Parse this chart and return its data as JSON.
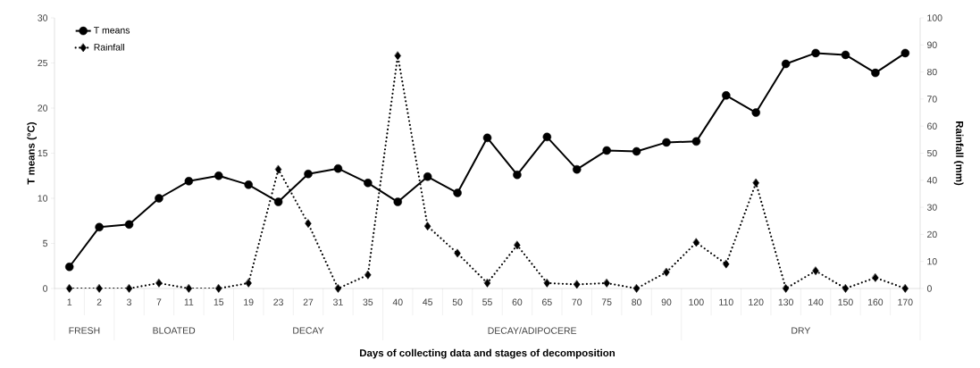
{
  "chart_data": {
    "type": "line",
    "xlabel": "Days of collecting data and stages of decomposition",
    "ylabel": "T means (°C)",
    "y2label": "Rainfall (mm)",
    "categories": [
      "1",
      "2",
      "3",
      "7",
      "11",
      "15",
      "19",
      "23",
      "27",
      "31",
      "35",
      "40",
      "45",
      "50",
      "55",
      "60",
      "65",
      "70",
      "75",
      "80",
      "90",
      "100",
      "110",
      "120",
      "130",
      "140",
      "150",
      "160",
      "170"
    ],
    "series": [
      {
        "name": "T means",
        "color": "#000000",
        "marker": "circle",
        "line_style": "solid",
        "values": [
          2.4,
          6.8,
          7.1,
          10.0,
          11.9,
          12.5,
          11.5,
          9.6,
          12.7,
          13.3,
          11.7,
          9.6,
          12.4,
          10.6,
          16.7,
          12.6,
          16.8,
          13.2,
          15.3,
          15.2,
          16.2,
          16.3,
          21.4,
          19.5,
          24.9,
          26.1,
          25.9,
          23.9,
          26.1
        ]
      },
      {
        "name": "Rainfall",
        "color": "#000000",
        "marker": "diamond",
        "line_style": "dotted",
        "axis": "y2",
        "values": [
          0,
          0,
          0,
          2,
          0,
          0,
          2,
          44,
          24,
          0,
          5,
          86,
          23,
          13,
          2,
          16,
          2,
          1.5,
          2,
          0,
          6,
          17,
          9,
          39,
          0,
          6.5,
          0,
          4,
          0
        ]
      }
    ],
    "ylim": [
      0,
      30
    ],
    "yticks": [
      0,
      5,
      10,
      15,
      20,
      25,
      30
    ],
    "y2lim": [
      0,
      100
    ],
    "y2ticks": [
      0,
      10,
      20,
      30,
      40,
      50,
      60,
      70,
      80,
      90,
      100
    ],
    "legend": "top left",
    "annotations": [
      "FRESH",
      "BLOATED",
      "DECAY",
      "DECAY/ADIPOCERE",
      "DRY"
    ]
  }
}
